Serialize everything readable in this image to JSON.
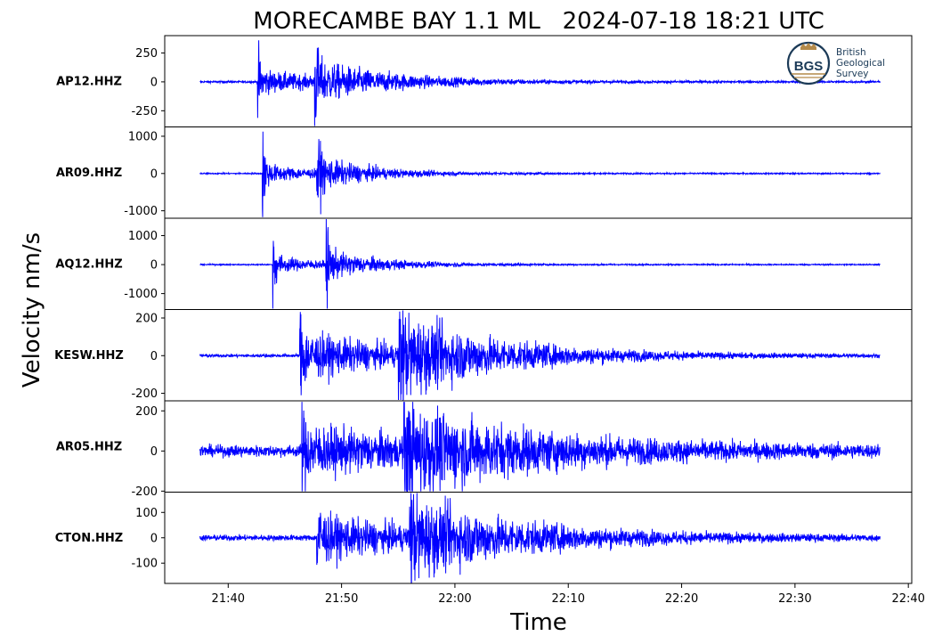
{
  "chart_data": {
    "type": "line",
    "title": "MORECAMBE BAY 1.1 ML   2024-07-18 18:21 UTC",
    "xlabel": "Time",
    "ylabel": "Velocity nm/s",
    "x_ticks": [
      "21:40",
      "21:50",
      "22:00",
      "22:10",
      "22:20",
      "22:30",
      "22:40"
    ],
    "x_tick_minutes": [
      40,
      50,
      60,
      70,
      80,
      90,
      100
    ],
    "xlim_minutes": [
      34.4,
      100.3
    ],
    "trace_start_minutes": 37.5,
    "trace_end_minutes": 97.5,
    "line_color": "#0000ff",
    "series": [
      {
        "name": "AP12.HHZ",
        "ylim": [
          -390,
          400
        ],
        "yticks": [
          250,
          0,
          -250
        ],
        "ytick_labels": [
          "250",
          "0",
          "-250"
        ],
        "arrivals": [
          {
            "t": 42.6,
            "amp": 230
          },
          {
            "t": 47.6,
            "amp": 330
          }
        ],
        "noise": 6,
        "coda": 70,
        "decay": 7
      },
      {
        "name": "AR09.HHZ",
        "ylim": [
          -1200,
          1250
        ],
        "yticks": [
          1000,
          0,
          -1000
        ],
        "ytick_labels": [
          "1000",
          "0",
          "-1000"
        ],
        "arrivals": [
          {
            "t": 43.0,
            "amp": 1050
          },
          {
            "t": 47.8,
            "amp": 1050
          }
        ],
        "noise": 12,
        "coda": 180,
        "decay": 5
      },
      {
        "name": "AQ12.HHZ",
        "ylim": [
          -1550,
          1600
        ],
        "yticks": [
          1000,
          0,
          -1000
        ],
        "ytick_labels": [
          "1000",
          "0",
          "-1000"
        ],
        "arrivals": [
          {
            "t": 43.9,
            "amp": 1400
          },
          {
            "t": 48.6,
            "amp": 1400
          }
        ],
        "noise": 15,
        "coda": 200,
        "decay": 5
      },
      {
        "name": "KESW.HHZ",
        "ylim": [
          -240,
          245
        ],
        "yticks": [
          200,
          0,
          -200
        ],
        "ytick_labels": [
          "200",
          "0",
          "-200"
        ],
        "arrivals": [
          {
            "t": 46.3,
            "amp": 190
          },
          {
            "t": 55.0,
            "amp": 180
          }
        ],
        "noise": 6,
        "coda": 90,
        "decay": 9
      },
      {
        "name": "AR05.HHZ",
        "ylim": [
          -205,
          250
        ],
        "yticks": [
          200,
          0,
          -200
        ],
        "ytick_labels": [
          "200",
          "0",
          "-200"
        ],
        "arrivals": [
          {
            "t": 46.5,
            "amp": 120
          },
          {
            "t": 55.5,
            "amp": 200
          }
        ],
        "noise": 20,
        "coda": 80,
        "decay": 12
      },
      {
        "name": "CTON.HHZ",
        "ylim": [
          -180,
          180
        ],
        "yticks": [
          100,
          0,
          -100
        ],
        "ytick_labels": [
          "100",
          "0",
          "-100"
        ],
        "arrivals": [
          {
            "t": 47.8,
            "amp": 160
          },
          {
            "t": 56.0,
            "amp": 130
          }
        ],
        "noise": 8,
        "coda": 60,
        "decay": 10
      }
    ],
    "grid": false,
    "legend": "none"
  },
  "logo": {
    "icon": "bgs-roundel-icon",
    "abbr": "BGS",
    "lines": [
      "British",
      "Geological",
      "Survey"
    ],
    "color": "#1b3a57",
    "accent": "#b48a4a"
  }
}
